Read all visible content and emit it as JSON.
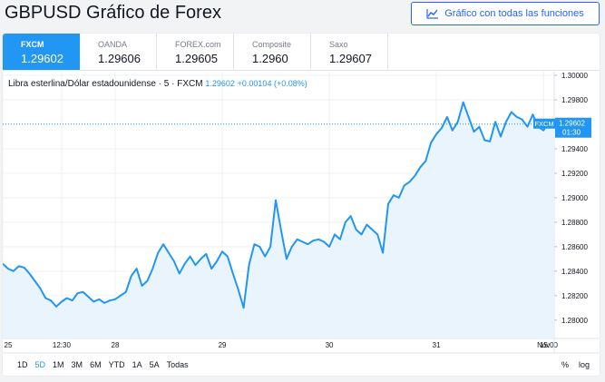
{
  "page": {
    "title": "GBPUSD Gráfico de Forex"
  },
  "full_chart_button": {
    "label": "Gráfico con todas las funciones",
    "icon": "chart-line-icon"
  },
  "sources": [
    {
      "name": "FXCM",
      "value": "1.29602",
      "active": true
    },
    {
      "name": "OANDA",
      "value": "1.29606",
      "active": false
    },
    {
      "name": "FOREX.com",
      "value": "1.29605",
      "active": false
    },
    {
      "name": "Composite",
      "value": "1.2960",
      "active": false
    },
    {
      "name": "Saxo",
      "value": "1.29607",
      "active": false
    }
  ],
  "legend": {
    "symbol": "Libra esterlina/Dólar estadounidense · 5 · FXCM",
    "last": "1.29602",
    "change": "+0.00104 (+0.08%)"
  },
  "price_tag": {
    "value": "1.29602",
    "countdown": "01:30",
    "source": "FXCM"
  },
  "timeframes": [
    {
      "label": "1D",
      "active": false
    },
    {
      "label": "5D",
      "active": true
    },
    {
      "label": "1M",
      "active": false
    },
    {
      "label": "3M",
      "active": false
    },
    {
      "label": "6M",
      "active": false
    },
    {
      "label": "YTD",
      "active": false
    },
    {
      "label": "1A",
      "active": false
    },
    {
      "label": "5A",
      "active": false
    },
    {
      "label": "Todas",
      "active": false
    }
  ],
  "scale_controls": {
    "percent": "%",
    "log": "log"
  },
  "colors": {
    "accent": "#2196f3",
    "line": "#2196f3",
    "area": "#eaf4fd",
    "grid": "#eef0f3"
  },
  "chart_data": {
    "type": "area",
    "ylim": [
      1.2785,
      1.3003
    ],
    "yticks": [
      "1.30000",
      "1.29800",
      "1.29600",
      "1.29400",
      "1.29200",
      "1.29000",
      "1.28800",
      "1.28600",
      "1.28400",
      "1.28200",
      "1.28000"
    ],
    "xlim": [
      0,
      5.15
    ],
    "xticks": [
      {
        "label": "25",
        "x": 0.0
      },
      {
        "label": "12:30",
        "x": 0.55
      },
      {
        "label": "28",
        "x": 1.05
      },
      {
        "label": "29",
        "x": 2.05
      },
      {
        "label": "30",
        "x": 3.05
      },
      {
        "label": "31",
        "x": 4.05
      },
      {
        "label": "Nov",
        "x": 5.05
      },
      {
        "label": "15:00",
        "x": 5.58
      }
    ],
    "series": [
      {
        "x": [
          0.0,
          0.05,
          0.1,
          0.15,
          0.2,
          0.25,
          0.3,
          0.35,
          0.4,
          0.45,
          0.5,
          0.55,
          0.6,
          0.65,
          0.7,
          0.75,
          0.8,
          0.85,
          0.9,
          0.95,
          1.0,
          1.05,
          1.1,
          1.15,
          1.2,
          1.25,
          1.3,
          1.35,
          1.4,
          1.45,
          1.5,
          1.55,
          1.6,
          1.65,
          1.7,
          1.75,
          1.8,
          1.85,
          1.9,
          1.95,
          2.0,
          2.05,
          2.1,
          2.15,
          2.2,
          2.25,
          2.3,
          2.35,
          2.4,
          2.45,
          2.5,
          2.55,
          2.6,
          2.65,
          2.7,
          2.75,
          2.8,
          2.85,
          2.9,
          2.95,
          3.0,
          3.05,
          3.1,
          3.15,
          3.2,
          3.25,
          3.3,
          3.35,
          3.4,
          3.45,
          3.5,
          3.55,
          3.6,
          3.65,
          3.7,
          3.75,
          3.8,
          3.85,
          3.9,
          3.95,
          4.0,
          4.05,
          4.1,
          4.15,
          4.2,
          4.25,
          4.3,
          4.35,
          4.4,
          4.45,
          4.5,
          4.55,
          4.6,
          4.65,
          4.7,
          4.75,
          4.8,
          4.85,
          4.9,
          4.95,
          5.0,
          5.05,
          5.1,
          5.15
        ],
        "values": [
          1.2846,
          1.2842,
          1.284,
          1.2844,
          1.2843,
          1.2838,
          1.2832,
          1.2826,
          1.2818,
          1.2816,
          1.2811,
          1.2815,
          1.2818,
          1.2816,
          1.2822,
          1.2823,
          1.2819,
          1.2815,
          1.2817,
          1.2814,
          1.2816,
          1.2817,
          1.282,
          1.2823,
          1.2836,
          1.2842,
          1.2828,
          1.2832,
          1.2842,
          1.2855,
          1.2862,
          1.2855,
          1.2848,
          1.2838,
          1.2846,
          1.2852,
          1.2845,
          1.285,
          1.2854,
          1.2842,
          1.2848,
          1.2856,
          1.2852,
          1.2838,
          1.2825,
          1.281,
          1.2845,
          1.2862,
          1.286,
          1.2852,
          1.286,
          1.2898,
          1.2873,
          1.285,
          1.286,
          1.2866,
          1.2864,
          1.2862,
          1.2865,
          1.2866,
          1.2864,
          1.286,
          1.287,
          1.2866,
          1.288,
          1.2885,
          1.2874,
          1.287,
          1.2878,
          1.2874,
          1.287,
          1.2855,
          1.2895,
          1.2902,
          1.29,
          1.291,
          1.2913,
          1.2918,
          1.2925,
          1.293,
          1.2945,
          1.2952,
          1.2957,
          1.2966,
          1.2955,
          1.2962,
          1.2978,
          1.2966,
          1.2954,
          1.2958,
          1.2947,
          1.2946,
          1.2962,
          1.295,
          1.2962,
          1.297,
          1.2966,
          1.2964,
          1.2958,
          1.2968,
          1.2958,
          1.2955,
          1.2962,
          1.29602
        ]
      }
    ]
  }
}
